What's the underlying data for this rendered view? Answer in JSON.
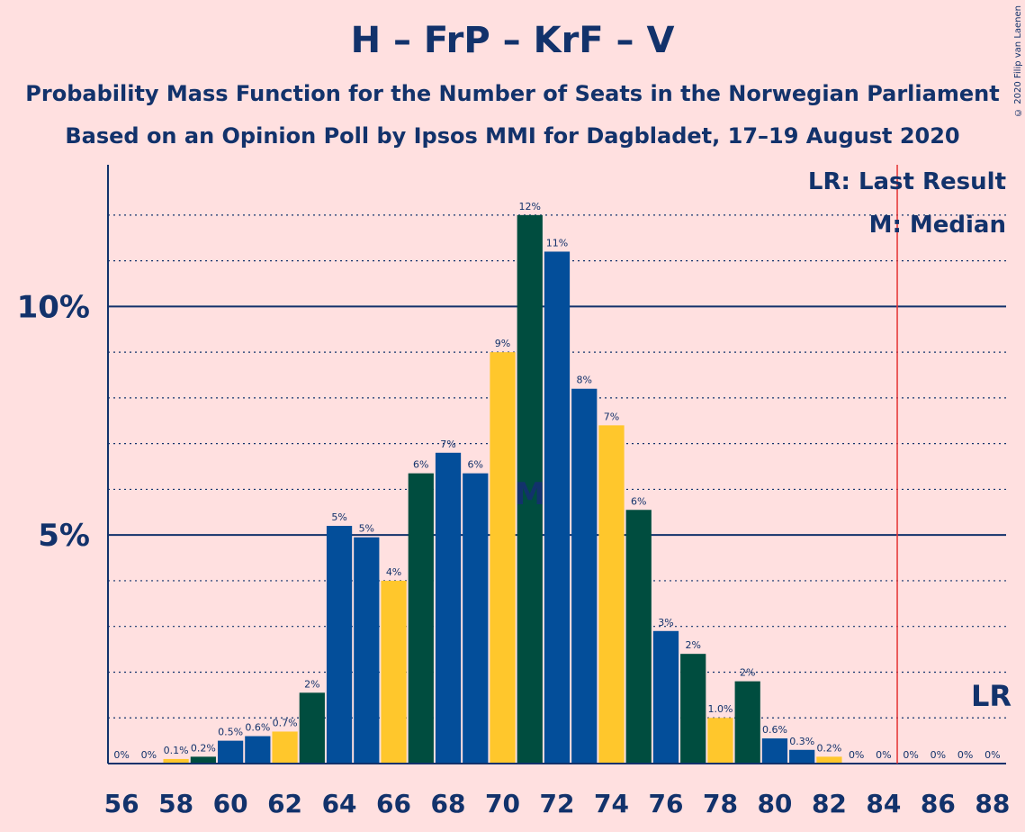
{
  "title": "H – FrP – KrF – V",
  "subtitle": "Probability Mass Function for the Number of Seats in the Norwegian Parliament",
  "subtitle2": "Based on an Opinion Poll by Ipsos MMI for Dagbladet, 17–19 August 2020",
  "copyright": "© 2020 Filip van Laenen",
  "legend": {
    "lr": "LR: Last Result",
    "m": "M: Median"
  },
  "markers": {
    "median_label": "M",
    "median_seat": 71,
    "lr_label": "LR",
    "last_result_seat": 84.5
  },
  "colors": {
    "blue": "#034E9A",
    "yellow": "#FFC72C",
    "green": "#004D3F",
    "text": "#12326b",
    "lr_line": "#e53333",
    "background": "#FFE0E0"
  },
  "chart_data": {
    "type": "bar",
    "xlabel": "",
    "ylabel": "",
    "ylim": [
      0,
      13.1
    ],
    "y_ticks": [
      {
        "value": 5,
        "label": "5%"
      },
      {
        "value": 10,
        "label": "10%"
      }
    ],
    "x_tick_labels": [
      "56",
      "58",
      "60",
      "62",
      "64",
      "66",
      "68",
      "70",
      "72",
      "74",
      "76",
      "78",
      "80",
      "82",
      "84",
      "86",
      "88"
    ],
    "categories": [
      56,
      57,
      58,
      59,
      60,
      61,
      62,
      63,
      64,
      65,
      66,
      67,
      68,
      69,
      70,
      71,
      72,
      73,
      74,
      75,
      76,
      77,
      78,
      79,
      80,
      81,
      82,
      83,
      84,
      85,
      86,
      87,
      88
    ],
    "values": [
      0,
      0,
      0.1,
      0.15,
      0.5,
      0.6,
      0.7,
      1.55,
      5.2,
      4.95,
      4.0,
      6.35,
      6.8,
      6.35,
      9.0,
      12.0,
      11.2,
      8.2,
      7.4,
      5.55,
      2.9,
      2.4,
      1.0,
      1.8,
      0.55,
      0.3,
      0.15,
      0,
      0,
      0,
      0,
      0,
      0
    ],
    "labels": [
      "0%",
      "0%",
      "0.1%",
      "0.2%",
      "0.5%",
      "0.6%",
      "0.7%",
      "2%",
      "5%",
      "5%",
      "4%",
      "6%",
      "7%",
      "6%",
      "9%",
      "12%",
      "11%",
      "8%",
      "7%",
      "6%",
      "3%",
      "2%",
      "1.0%",
      "2%",
      "0.6%",
      "0.3%",
      "0.2%",
      "0%",
      "0%",
      "0%",
      "0%",
      "0%",
      "0%"
    ],
    "bar_colors": [
      "yellow",
      "green",
      "yellow",
      "green",
      "blue",
      "blue",
      "yellow",
      "green",
      "blue",
      "blue",
      "yellow",
      "green",
      "blue",
      "blue",
      "yellow",
      "green",
      "blue",
      "blue",
      "yellow",
      "green",
      "blue",
      "green",
      "yellow",
      "green",
      "blue",
      "blue",
      "yellow",
      "green",
      "blue",
      "blue",
      "yellow",
      "green",
      "blue"
    ],
    "grid": true
  }
}
